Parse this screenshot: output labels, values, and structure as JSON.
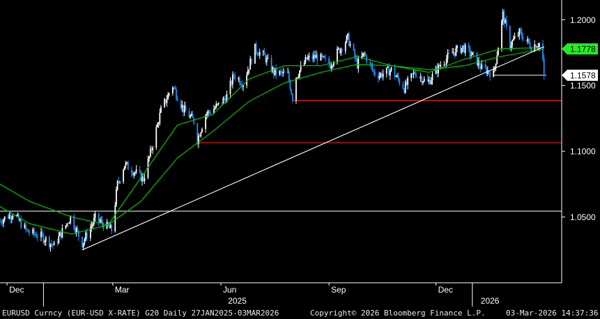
{
  "chart_data": {
    "type": "candlestick",
    "instrument": "EURUSD Curncy (EUR-USD X-RATE) G20 Daily 27JAN2025-03MAR2026",
    "copyright": "Copyright© 2026 Bloomberg Finance L.P.",
    "timestamp": "03-Mar-2026 14:37:36",
    "y_axis": {
      "position": "right",
      "range": [
        1.0,
        1.215
      ],
      "ticks": [
        {
          "value": 1.2,
          "label": "1.2000"
        },
        {
          "value": 1.15,
          "label": "1.1500"
        },
        {
          "value": 1.1,
          "label": "1.1000"
        },
        {
          "value": 1.05,
          "label": "1.0500"
        }
      ]
    },
    "x_axis": {
      "range": [
        "2024-11-25",
        "2026-03-18"
      ],
      "ticks": [
        {
          "date": "2024-12-01",
          "label": "Dec"
        },
        {
          "date": "2025-03-01",
          "label": "Mar"
        },
        {
          "date": "2025-06-01",
          "label": "Jun"
        },
        {
          "date": "2025-09-01",
          "label": "Sep"
        },
        {
          "date": "2025-12-01",
          "label": "Dec"
        }
      ],
      "year_labels": [
        {
          "date": "2025-06-15",
          "label": "2025"
        },
        {
          "date": "2026-01-16",
          "label": "2026"
        }
      ],
      "year_dividers": [
        "2025-01-01",
        "2026-01-01"
      ]
    },
    "price_path": [
      [
        "2024-11-25",
        1.047
      ],
      [
        "2024-12-06",
        1.053
      ],
      [
        "2024-12-18",
        1.039
      ],
      [
        "2024-12-31",
        1.035
      ],
      [
        "2025-01-10",
        1.028
      ],
      [
        "2025-01-24",
        1.05
      ],
      [
        "2025-02-03",
        1.03
      ],
      [
        "2025-02-14",
        1.049
      ],
      [
        "2025-02-28",
        1.04
      ],
      [
        "2025-03-05",
        1.075
      ],
      [
        "2025-03-11",
        1.09
      ],
      [
        "2025-03-20",
        1.084
      ],
      [
        "2025-03-27",
        1.079
      ],
      [
        "2025-04-03",
        1.102
      ],
      [
        "2025-04-11",
        1.131
      ],
      [
        "2025-04-21",
        1.15
      ],
      [
        "2025-04-30",
        1.132
      ],
      [
        "2025-05-09",
        1.123
      ],
      [
        "2025-05-12",
        1.109
      ],
      [
        "2025-05-19",
        1.128
      ],
      [
        "2025-05-30",
        1.135
      ],
      [
        "2025-06-06",
        1.142
      ],
      [
        "2025-06-12",
        1.158
      ],
      [
        "2025-06-20",
        1.152
      ],
      [
        "2025-06-30",
        1.178
      ],
      [
        "2025-07-08",
        1.172
      ],
      [
        "2025-07-16",
        1.16
      ],
      [
        "2025-07-28",
        1.158
      ],
      [
        "2025-08-01",
        1.141
      ],
      [
        "2025-08-04",
        1.157
      ],
      [
        "2025-08-13",
        1.17
      ],
      [
        "2025-08-22",
        1.172
      ],
      [
        "2025-09-02",
        1.166
      ],
      [
        "2025-09-08",
        1.175
      ],
      [
        "2025-09-17",
        1.186
      ],
      [
        "2025-09-25",
        1.166
      ],
      [
        "2025-10-01",
        1.174
      ],
      [
        "2025-10-09",
        1.16
      ],
      [
        "2025-10-14",
        1.158
      ],
      [
        "2025-10-24",
        1.162
      ],
      [
        "2025-11-04",
        1.148
      ],
      [
        "2025-11-13",
        1.16
      ],
      [
        "2025-11-24",
        1.152
      ],
      [
        "2025-12-05",
        1.166
      ],
      [
        "2025-12-15",
        1.175
      ],
      [
        "2025-12-24",
        1.179
      ],
      [
        "2026-01-02",
        1.172
      ],
      [
        "2026-01-09",
        1.163
      ],
      [
        "2026-01-19",
        1.159
      ],
      [
        "2026-01-23",
        1.18
      ],
      [
        "2026-01-27",
        1.204
      ],
      [
        "2026-02-02",
        1.181
      ],
      [
        "2026-02-10",
        1.19
      ],
      [
        "2026-02-20",
        1.18
      ],
      [
        "2026-02-27",
        1.182
      ],
      [
        "2026-03-02",
        1.17
      ],
      [
        "2026-03-03",
        1.1578
      ]
    ],
    "moving_averages": [
      {
        "color": "#00c400",
        "points": [
          [
            "2024-11-25",
            1.058
          ],
          [
            "2024-12-20",
            1.045
          ],
          [
            "2025-01-25",
            1.037
          ],
          [
            "2025-02-25",
            1.044
          ],
          [
            "2025-03-25",
            1.08
          ],
          [
            "2025-04-25",
            1.12
          ],
          [
            "2025-05-25",
            1.128
          ],
          [
            "2025-06-25",
            1.155
          ],
          [
            "2025-07-25",
            1.165
          ],
          [
            "2025-08-25",
            1.165
          ],
          [
            "2025-09-25",
            1.172
          ],
          [
            "2025-10-25",
            1.165
          ],
          [
            "2025-11-25",
            1.16
          ],
          [
            "2025-12-25",
            1.17
          ],
          [
            "2026-01-25",
            1.178
          ],
          [
            "2026-03-03",
            1.1788
          ]
        ]
      },
      {
        "color": "#00c400",
        "points": [
          [
            "2024-11-25",
            1.075
          ],
          [
            "2024-12-20",
            1.062
          ],
          [
            "2025-01-25",
            1.05
          ],
          [
            "2025-02-25",
            1.044
          ],
          [
            "2025-03-25",
            1.062
          ],
          [
            "2025-04-25",
            1.095
          ],
          [
            "2025-05-25",
            1.115
          ],
          [
            "2025-06-25",
            1.138
          ],
          [
            "2025-07-25",
            1.152
          ],
          [
            "2025-08-25",
            1.16
          ],
          [
            "2025-09-25",
            1.166
          ],
          [
            "2025-10-25",
            1.165
          ],
          [
            "2025-11-25",
            1.162
          ],
          [
            "2025-12-25",
            1.165
          ],
          [
            "2026-01-25",
            1.172
          ],
          [
            "2026-03-03",
            1.1778
          ]
        ]
      }
    ],
    "trend_line": {
      "color": "#ffffff",
      "points": [
        [
          "2025-02-03",
          1.025
        ],
        [
          "2026-03-03",
          1.1795
        ]
      ]
    },
    "horizontal_lines": [
      {
        "color": "#ff2222",
        "value": 1.1385,
        "from": "2025-08-01",
        "to": "2026-03-18"
      },
      {
        "color": "#ff2222",
        "value": 1.1065,
        "from": "2025-05-12",
        "to": "2026-03-18"
      },
      {
        "color": "#ffffff",
        "value": 1.0545,
        "from": "2024-11-25",
        "to": "2026-03-18"
      },
      {
        "color": "#ffffff",
        "value": 1.1578,
        "from": "2026-01-19",
        "to": "2026-03-05"
      }
    ],
    "price_labels": [
      {
        "value": 1.1778,
        "label": "1.1778",
        "background": "#22ee22",
        "text_color": "#000000"
      },
      {
        "value": 1.1578,
        "label": "1.1578",
        "background": "#ffffff",
        "text_color": "#000000"
      }
    ],
    "colors": {
      "candle_up": "#ffffff",
      "candle_down": "#1e90ff",
      "axis": "#ffffff",
      "background": "#000000"
    }
  }
}
